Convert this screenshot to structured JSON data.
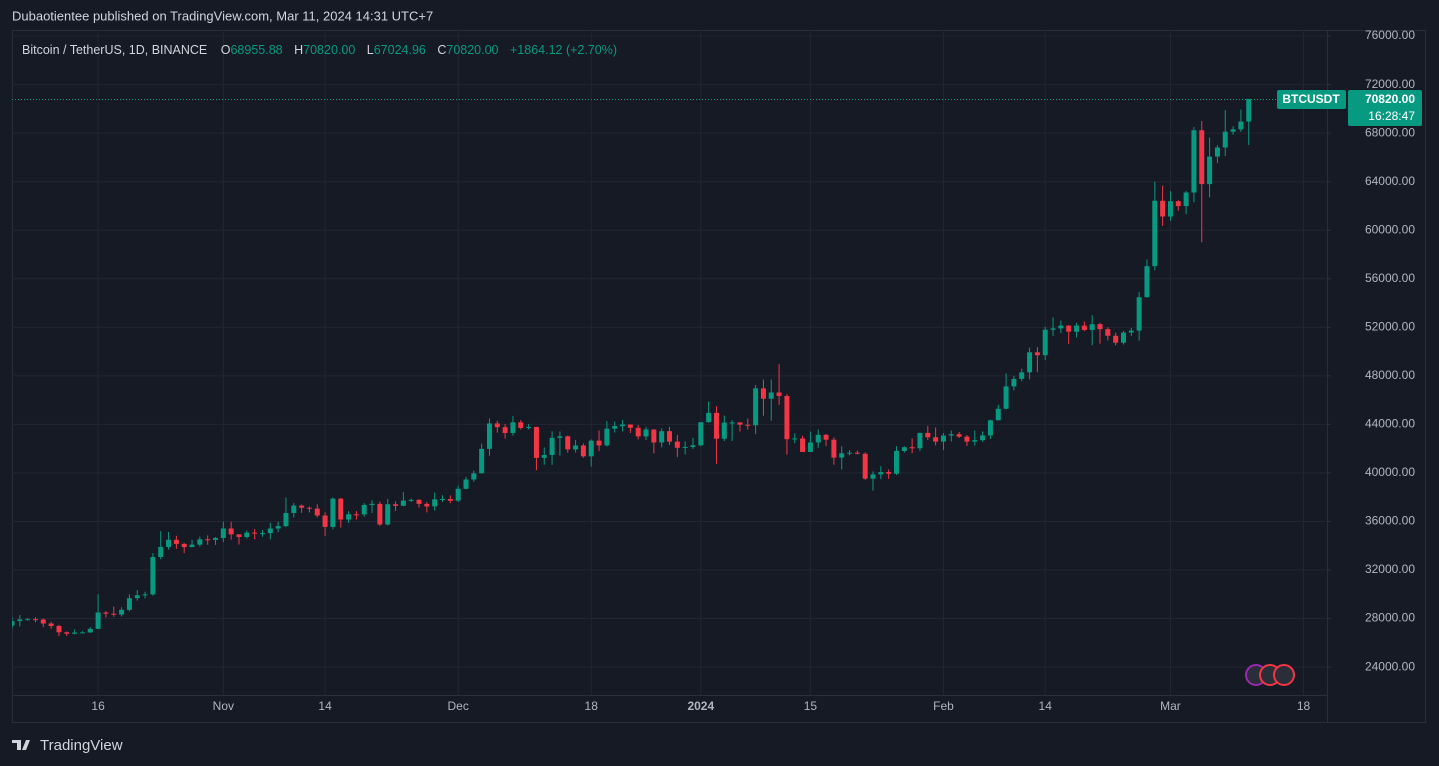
{
  "header": "Dubaotientee published on TradingView.com, Mar 11, 2024 14:31 UTC+7",
  "footer": "TradingView",
  "legend": {
    "symbol": "Bitcoin / TetherUS, 1D, BINANCE",
    "open_label": "O",
    "open": "68955.88",
    "high_label": "H",
    "high": "70820.00",
    "low_label": "L",
    "low": "67024.96",
    "close_label": "C",
    "close": "70820.00",
    "change": "+1864.12 (+2.70%)"
  },
  "price_tag": {
    "ticker": "BTCUSDT",
    "price": "70820.00",
    "countdown": "16:28:47"
  },
  "chart_data": {
    "type": "candlestick",
    "up_color": "#089981",
    "down_color": "#f23645",
    "grid": true,
    "xlim": [
      "2023-10-05",
      "2024-03-21"
    ],
    "ylim": [
      21700,
      76500
    ],
    "xticks": [
      {
        "value": "2023-10-16",
        "label": "16"
      },
      {
        "value": "2023-11-01",
        "label": "Nov"
      },
      {
        "value": "2023-11-14",
        "label": "14"
      },
      {
        "value": "2023-12-01",
        "label": "Dec"
      },
      {
        "value": "2023-12-18",
        "label": "18"
      },
      {
        "value": "2024-01-01",
        "label": "2024"
      },
      {
        "value": "2024-01-15",
        "label": "15"
      },
      {
        "value": "2024-02-01",
        "label": "Feb"
      },
      {
        "value": "2024-02-14",
        "label": "14"
      },
      {
        "value": "2024-03-01",
        "label": "Mar"
      },
      {
        "value": "2024-03-18",
        "label": "18"
      }
    ],
    "yticks": [
      {
        "value": 24000,
        "label": "24000.00"
      },
      {
        "value": 28000,
        "label": "28000.00"
      },
      {
        "value": 32000,
        "label": "32000.00"
      },
      {
        "value": 36000,
        "label": "36000.00"
      },
      {
        "value": 40000,
        "label": "40000.00"
      },
      {
        "value": 44000,
        "label": "44000.00"
      },
      {
        "value": 48000,
        "label": "48000.00"
      },
      {
        "value": 52000,
        "label": "52000.00"
      },
      {
        "value": 56000,
        "label": "56000.00"
      },
      {
        "value": 60000,
        "label": "60000.00"
      },
      {
        "value": 64000,
        "label": "64000.00"
      },
      {
        "value": 68000,
        "label": "68000.00"
      },
      {
        "value": 72000,
        "label": "72000.00"
      },
      {
        "value": 76000,
        "label": "76000.00"
      }
    ],
    "x": [
      "2023-10-05",
      "2023-10-06",
      "2023-10-07",
      "2023-10-08",
      "2023-10-09",
      "2023-10-10",
      "2023-10-11",
      "2023-10-12",
      "2023-10-13",
      "2023-10-14",
      "2023-10-15",
      "2023-10-16",
      "2023-10-17",
      "2023-10-18",
      "2023-10-19",
      "2023-10-20",
      "2023-10-21",
      "2023-10-22",
      "2023-10-23",
      "2023-10-24",
      "2023-10-25",
      "2023-10-26",
      "2023-10-27",
      "2023-10-28",
      "2023-10-29",
      "2023-10-30",
      "2023-10-31",
      "2023-11-01",
      "2023-11-02",
      "2023-11-03",
      "2023-11-04",
      "2023-11-05",
      "2023-11-06",
      "2023-11-07",
      "2023-11-08",
      "2023-11-09",
      "2023-11-10",
      "2023-11-11",
      "2023-11-12",
      "2023-11-13",
      "2023-11-14",
      "2023-11-15",
      "2023-11-16",
      "2023-11-17",
      "2023-11-18",
      "2023-11-19",
      "2023-11-20",
      "2023-11-21",
      "2023-11-22",
      "2023-11-23",
      "2023-11-24",
      "2023-11-25",
      "2023-11-26",
      "2023-11-27",
      "2023-11-28",
      "2023-11-29",
      "2023-11-30",
      "2023-12-01",
      "2023-12-02",
      "2023-12-03",
      "2023-12-04",
      "2023-12-05",
      "2023-12-06",
      "2023-12-07",
      "2023-12-08",
      "2023-12-09",
      "2023-12-10",
      "2023-12-11",
      "2023-12-12",
      "2023-12-13",
      "2023-12-14",
      "2023-12-15",
      "2023-12-16",
      "2023-12-17",
      "2023-12-18",
      "2023-12-19",
      "2023-12-20",
      "2023-12-21",
      "2023-12-22",
      "2023-12-23",
      "2023-12-24",
      "2023-12-25",
      "2023-12-26",
      "2023-12-27",
      "2023-12-28",
      "2023-12-29",
      "2023-12-30",
      "2023-12-31",
      "2024-01-01",
      "2024-01-02",
      "2024-01-03",
      "2024-01-04",
      "2024-01-05",
      "2024-01-06",
      "2024-01-07",
      "2024-01-08",
      "2024-01-09",
      "2024-01-10",
      "2024-01-11",
      "2024-01-12",
      "2024-01-13",
      "2024-01-14",
      "2024-01-15",
      "2024-01-16",
      "2024-01-17",
      "2024-01-18",
      "2024-01-19",
      "2024-01-20",
      "2024-01-21",
      "2024-01-22",
      "2024-01-23",
      "2024-01-24",
      "2024-01-25",
      "2024-01-26",
      "2024-01-27",
      "2024-01-28",
      "2024-01-29",
      "2024-01-30",
      "2024-01-31",
      "2024-02-01",
      "2024-02-02",
      "2024-02-03",
      "2024-02-04",
      "2024-02-05",
      "2024-02-06",
      "2024-02-07",
      "2024-02-08",
      "2024-02-09",
      "2024-02-10",
      "2024-02-11",
      "2024-02-12",
      "2024-02-13",
      "2024-02-14",
      "2024-02-15",
      "2024-02-16",
      "2024-02-17",
      "2024-02-18",
      "2024-02-19",
      "2024-02-20",
      "2024-02-21",
      "2024-02-22",
      "2024-02-23",
      "2024-02-24",
      "2024-02-25",
      "2024-02-26",
      "2024-02-27",
      "2024-02-28",
      "2024-02-29",
      "2024-03-01",
      "2024-03-02",
      "2024-03-03",
      "2024-03-04",
      "2024-03-05",
      "2024-03-06",
      "2024-03-07",
      "2024-03-08",
      "2024-03-09",
      "2024-03-10",
      "2024-03-11"
    ],
    "open": [
      27410,
      27790,
      27930,
      27950,
      27920,
      27590,
      27390,
      26870,
      26750,
      26850,
      26860,
      27150,
      28500,
      28400,
      28330,
      28720,
      29680,
      29920,
      29990,
      33070,
      33900,
      34490,
      34150,
      33890,
      34090,
      34530,
      34480,
      34640,
      35420,
      34940,
      34720,
      35080,
      35040,
      35040,
      35420,
      35620,
      36700,
      37310,
      37130,
      37060,
      36490,
      35550,
      37880,
      36160,
      36590,
      36580,
      37360,
      37450,
      35750,
      37420,
      37290,
      37720,
      37780,
      37450,
      37240,
      37820,
      37850,
      37710,
      38690,
      39460,
      39970,
      41980,
      44080,
      43770,
      43290,
      44170,
      43710,
      43790,
      41240,
      41480,
      42890,
      43020,
      41940,
      42260,
      41370,
      42660,
      42270,
      43650,
      43860,
      43990,
      43720,
      43010,
      43580,
      42510,
      43440,
      42580,
      42070,
      42140,
      42280,
      44180,
      44950,
      42820,
      44150,
      44160,
      43970,
      43930,
      46970,
      46110,
      46630,
      46340,
      42780,
      42840,
      41730,
      42510,
      43140,
      42740,
      41260,
      41620,
      41670,
      41580,
      39530,
      39880,
      40070,
      39930,
      41810,
      42120,
      42030,
      43300,
      42940,
      42580,
      43080,
      43190,
      42990,
      42580,
      42700,
      43090,
      44340,
      45290,
      47130,
      47750,
      48290,
      49940,
      49700,
      51800,
      51910,
      52140,
      51640,
      52140,
      51780,
      52260,
      51850,
      51300,
      50730,
      51570,
      51730,
      54480,
      57040,
      62430,
      61130,
      62390,
      61990,
      63110,
      68240,
      63800,
      66070,
      66820,
      68120,
      68310,
      68955.88
    ],
    "high": [
      28120,
      28290,
      28050,
      28110,
      27990,
      27740,
      27480,
      26940,
      27100,
      26960,
      27290,
      30000,
      28610,
      28990,
      28930,
      30000,
      30350,
      30210,
      33400,
      35200,
      35130,
      34820,
      34240,
      34480,
      34750,
      34860,
      34720,
      35980,
      35980,
      34940,
      35260,
      35380,
      35290,
      35890,
      35980,
      37970,
      37530,
      37400,
      37240,
      37420,
      36750,
      37980,
      37930,
      36850,
      36850,
      37510,
      37750,
      37650,
      37860,
      37650,
      38420,
      37890,
      37840,
      37590,
      38390,
      38160,
      38150,
      38950,
      39680,
      40190,
      42410,
      44490,
      44300,
      44040,
      44700,
      44360,
      44040,
      43800,
      42100,
      43430,
      43410,
      43090,
      42720,
      42430,
      42760,
      43500,
      44280,
      44240,
      44370,
      43990,
      43950,
      43800,
      43600,
      43680,
      43800,
      43130,
      42600,
      42890,
      44190,
      45880,
      45500,
      44730,
      44340,
      44190,
      44480,
      47250,
      47700,
      47700,
      48970,
      46500,
      43260,
      43070,
      43400,
      43580,
      43200,
      42930,
      42200,
      41880,
      41840,
      41700,
      40130,
      40550,
      40290,
      42200,
      42200,
      42840,
      43310,
      43880,
      43750,
      43290,
      43490,
      43380,
      43120,
      43500,
      43420,
      44390,
      45610,
      48200,
      48000,
      48590,
      50330,
      50370,
      52040,
      52820,
      52570,
      52180,
      52360,
      52480,
      52990,
      52370,
      52000,
      51550,
      51700,
      51950,
      54900,
      57590,
      64000,
      63680,
      63230,
      62480,
      63230,
      68500,
      69000,
      67640,
      67000,
      69900,
      68570,
      69940,
      70820
    ],
    "low": [
      27170,
      27350,
      27840,
      27690,
      27300,
      27160,
      26560,
      26560,
      26690,
      26800,
      26810,
      27130,
      28080,
      28150,
      28170,
      28600,
      29480,
      29660,
      29880,
      32880,
      33690,
      33740,
      33390,
      33880,
      33930,
      34080,
      34070,
      34300,
      34500,
      34100,
      34590,
      34530,
      34740,
      34520,
      35110,
      35530,
      36330,
      36710,
      36750,
      36340,
      34800,
      35360,
      35500,
      35880,
      36160,
      36390,
      36700,
      35630,
      35670,
      36870,
      37250,
      37600,
      37150,
      36750,
      36890,
      37610,
      37500,
      37610,
      38650,
      39280,
      39950,
      41420,
      43330,
      42830,
      43080,
      43580,
      43580,
      40220,
      40680,
      40670,
      41420,
      41660,
      41680,
      41250,
      40530,
      41800,
      42180,
      43330,
      43420,
      43290,
      42760,
      42720,
      41600,
      42100,
      42300,
      41300,
      41520,
      41970,
      42190,
      44150,
      40750,
      42620,
      42630,
      43400,
      43570,
      43200,
      44710,
      44300,
      45600,
      41500,
      42440,
      41720,
      41720,
      42050,
      42200,
      40680,
      40280,
      41450,
      41530,
      39430,
      38550,
      39480,
      39510,
      39820,
      41680,
      41620,
      41800,
      42700,
      42270,
      41880,
      42590,
      42880,
      42220,
      42260,
      42570,
      42790,
      44330,
      45240,
      46800,
      47550,
      47710,
      48300,
      49300,
      51280,
      51520,
      50630,
      51160,
      51670,
      50520,
      50650,
      50920,
      50520,
      50580,
      51280,
      50900,
      54450,
      56690,
      60360,
      60770,
      61610,
      61320,
      62300,
      59000,
      62700,
      65550,
      66100,
      67870,
      68100,
      67024.96
    ],
    "close": [
      27790,
      27930,
      27950,
      27920,
      27590,
      27390,
      26870,
      26750,
      26850,
      26860,
      27150,
      28500,
      28400,
      28330,
      28720,
      29680,
      29920,
      29990,
      33070,
      33900,
      34490,
      34150,
      33890,
      34090,
      34530,
      34480,
      34640,
      35420,
      34940,
      34720,
      35080,
      35040,
      35040,
      35420,
      35620,
      36700,
      37310,
      37130,
      37060,
      36490,
      35550,
      37880,
      36160,
      36590,
      36580,
      37360,
      37450,
      35750,
      37420,
      37290,
      37720,
      37780,
      37450,
      37240,
      37820,
      37850,
      37710,
      38690,
      39460,
      39970,
      41980,
      44080,
      43770,
      43290,
      44170,
      43710,
      43790,
      41240,
      41480,
      42890,
      43020,
      41940,
      42260,
      41370,
      42660,
      42270,
      43650,
      43860,
      43990,
      43720,
      43010,
      43580,
      42510,
      43440,
      42580,
      42070,
      42140,
      42280,
      44180,
      44950,
      42820,
      44150,
      44160,
      43970,
      43930,
      46970,
      46110,
      46630,
      46340,
      42780,
      42840,
      41730,
      42510,
      43140,
      42740,
      41260,
      41620,
      41670,
      41580,
      39530,
      39880,
      40070,
      39930,
      41810,
      42120,
      42030,
      43300,
      42940,
      42580,
      43080,
      43190,
      42990,
      42580,
      42700,
      43090,
      44340,
      45290,
      47130,
      47750,
      48290,
      49940,
      49700,
      51800,
      51910,
      52140,
      51640,
      52140,
      51780,
      52260,
      51850,
      51300,
      50730,
      51570,
      51730,
      54480,
      57040,
      62430,
      61130,
      62390,
      61990,
      63110,
      68240,
      63800,
      66070,
      66820,
      68120,
      68310,
      68955.88,
      70820
    ]
  }
}
